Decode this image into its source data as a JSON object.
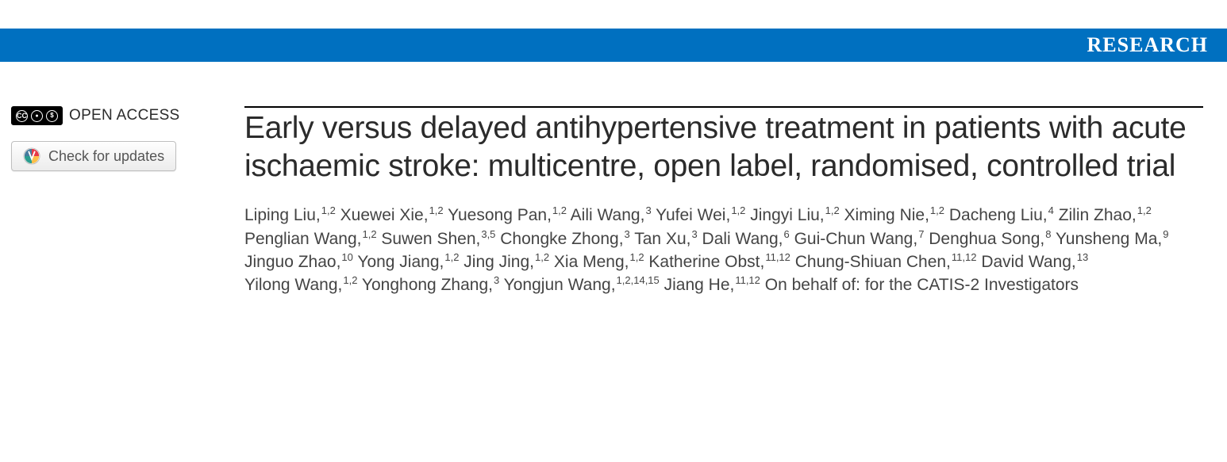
{
  "banner": {
    "label": "RESEARCH",
    "bg_color": "#0070c0",
    "text_color": "#ffffff"
  },
  "sidebar": {
    "open_access_label": "OPEN ACCESS",
    "cc_label": "CC",
    "by_label": "BY",
    "nc_label": "NC",
    "check_updates_label": "Check for updates"
  },
  "article": {
    "title": "Early versus delayed antihypertensive treatment in patients with acute ischaemic stroke: multicentre, open label, randomised, controlled trial",
    "authors": [
      {
        "name": "Liping Liu",
        "affil": "1,2"
      },
      {
        "name": "Xuewei Xie",
        "affil": "1,2"
      },
      {
        "name": "Yuesong Pan",
        "affil": "1,2"
      },
      {
        "name": "Aili Wang",
        "affil": "3"
      },
      {
        "name": "Yufei Wei",
        "affil": "1,2"
      },
      {
        "name": "Jingyi Liu",
        "affil": "1,2"
      },
      {
        "name": "Ximing Nie",
        "affil": "1,2"
      },
      {
        "name": "Dacheng Liu",
        "affil": "4"
      },
      {
        "name": "Zilin Zhao",
        "affil": "1,2"
      },
      {
        "name": "Penglian Wang",
        "affil": "1,2"
      },
      {
        "name": "Suwen Shen",
        "affil": "3,5"
      },
      {
        "name": "Chongke Zhong",
        "affil": "3"
      },
      {
        "name": "Tan Xu",
        "affil": "3"
      },
      {
        "name": "Dali Wang",
        "affil": "6"
      },
      {
        "name": "Gui-Chun Wang",
        "affil": "7"
      },
      {
        "name": "Denghua Song",
        "affil": "8"
      },
      {
        "name": "Yunsheng Ma",
        "affil": "9"
      },
      {
        "name": "Jinguo Zhao",
        "affil": "10"
      },
      {
        "name": "Yong Jiang",
        "affil": "1,2"
      },
      {
        "name": "Jing Jing",
        "affil": "1,2"
      },
      {
        "name": "Xia Meng",
        "affil": "1,2"
      },
      {
        "name": "Katherine Obst",
        "affil": "11,12"
      },
      {
        "name": "Chung-Shiuan Chen",
        "affil": "11,12"
      },
      {
        "name": "David Wang",
        "affil": "13"
      },
      {
        "name": "Yilong Wang",
        "affil": "1,2"
      },
      {
        "name": "Yonghong Zhang",
        "affil": "3"
      },
      {
        "name": "Yongjun Wang",
        "affil": "1,2,14,15"
      },
      {
        "name": "Jiang He",
        "affil": "11,12"
      }
    ],
    "on_behalf": "On behalf of: for the CATIS-2 Investigators"
  }
}
